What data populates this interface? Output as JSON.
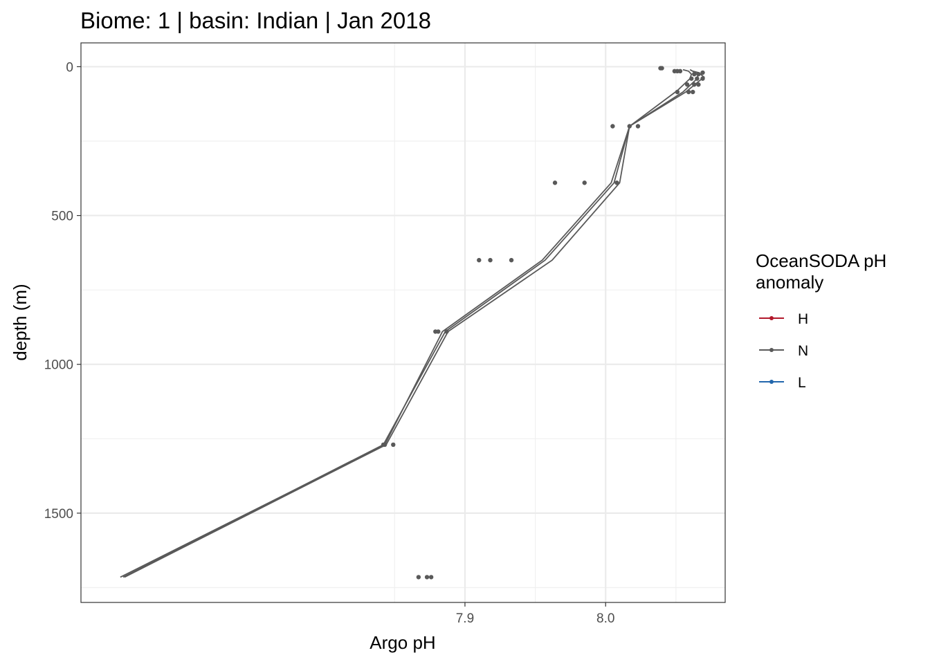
{
  "chart_data": {
    "type": "scatter",
    "title": "Biome: 1 | basin: Indian  | Jan 2018",
    "xlabel": "Argo pH",
    "ylabel": "depth (m)",
    "xlim": [
      7.627,
      8.085
    ],
    "ylim": [
      1800,
      -80
    ],
    "y_reversed": true,
    "x_ticks": [
      7.9,
      8.0
    ],
    "x_tick_labels": [
      "7.9",
      "8.0"
    ],
    "y_ticks": [
      0,
      500,
      1000,
      1500
    ],
    "y_tick_labels": [
      "0",
      "500",
      "1000",
      "1500"
    ],
    "grid": true,
    "legend": {
      "title": "OceanSODA pH anomaly",
      "title_lines": [
        "OceanSODA pH",
        "anomaly"
      ],
      "placement": "right",
      "entries": [
        {
          "label": "H",
          "color": "#b2182b"
        },
        {
          "label": "N",
          "color": "#595959"
        },
        {
          "label": "L",
          "color": "#2166ac"
        }
      ]
    },
    "point_color": "#595959",
    "line_color": "#595959",
    "points": [
      {
        "x": 8.039,
        "y": 5
      },
      {
        "x": 8.04,
        "y": 5
      },
      {
        "x": 8.049,
        "y": 15
      },
      {
        "x": 8.051,
        "y": 15
      },
      {
        "x": 8.053,
        "y": 15
      },
      {
        "x": 8.063,
        "y": 25
      },
      {
        "x": 8.066,
        "y": 25
      },
      {
        "x": 8.069,
        "y": 20
      },
      {
        "x": 8.061,
        "y": 40
      },
      {
        "x": 8.065,
        "y": 40
      },
      {
        "x": 8.069,
        "y": 40
      },
      {
        "x": 8.058,
        "y": 60
      },
      {
        "x": 8.063,
        "y": 60
      },
      {
        "x": 8.066,
        "y": 60
      },
      {
        "x": 8.051,
        "y": 85
      },
      {
        "x": 8.059,
        "y": 85
      },
      {
        "x": 8.062,
        "y": 85
      },
      {
        "x": 8.005,
        "y": 200
      },
      {
        "x": 8.017,
        "y": 200
      },
      {
        "x": 8.023,
        "y": 200
      },
      {
        "x": 7.964,
        "y": 390
      },
      {
        "x": 7.985,
        "y": 390
      },
      {
        "x": 8.008,
        "y": 390
      },
      {
        "x": 7.91,
        "y": 650
      },
      {
        "x": 7.918,
        "y": 650
      },
      {
        "x": 7.933,
        "y": 650
      },
      {
        "x": 7.879,
        "y": 890
      },
      {
        "x": 7.881,
        "y": 890
      },
      {
        "x": 7.887,
        "y": 890
      },
      {
        "x": 7.842,
        "y": 1270
      },
      {
        "x": 7.843,
        "y": 1270
      },
      {
        "x": 7.849,
        "y": 1270
      },
      {
        "x": 7.867,
        "y": 1715
      },
      {
        "x": 7.873,
        "y": 1715
      },
      {
        "x": 7.876,
        "y": 1715
      }
    ],
    "series": [
      {
        "x": [
          8.055,
          8.059,
          8.061,
          8.06,
          8.051,
          8.017,
          8.004,
          7.955,
          7.884,
          7.843,
          7.655
        ],
        "y": [
          10,
          15,
          25,
          40,
          80,
          200,
          390,
          650,
          890,
          1270,
          1715
        ]
      },
      {
        "x": [
          8.06,
          8.063,
          8.066,
          8.064,
          8.055,
          8.017,
          8.01,
          7.962,
          7.888,
          7.844,
          7.658
        ],
        "y": [
          10,
          18,
          28,
          45,
          85,
          200,
          390,
          650,
          890,
          1270,
          1715
        ]
      },
      {
        "x": [
          8.062,
          8.066,
          8.07,
          8.066,
          8.057,
          8.017,
          8.006,
          7.957,
          7.886,
          7.842,
          7.657
        ],
        "y": [
          15,
          20,
          35,
          50,
          85,
          200,
          390,
          650,
          890,
          1270,
          1715
        ]
      }
    ]
  }
}
